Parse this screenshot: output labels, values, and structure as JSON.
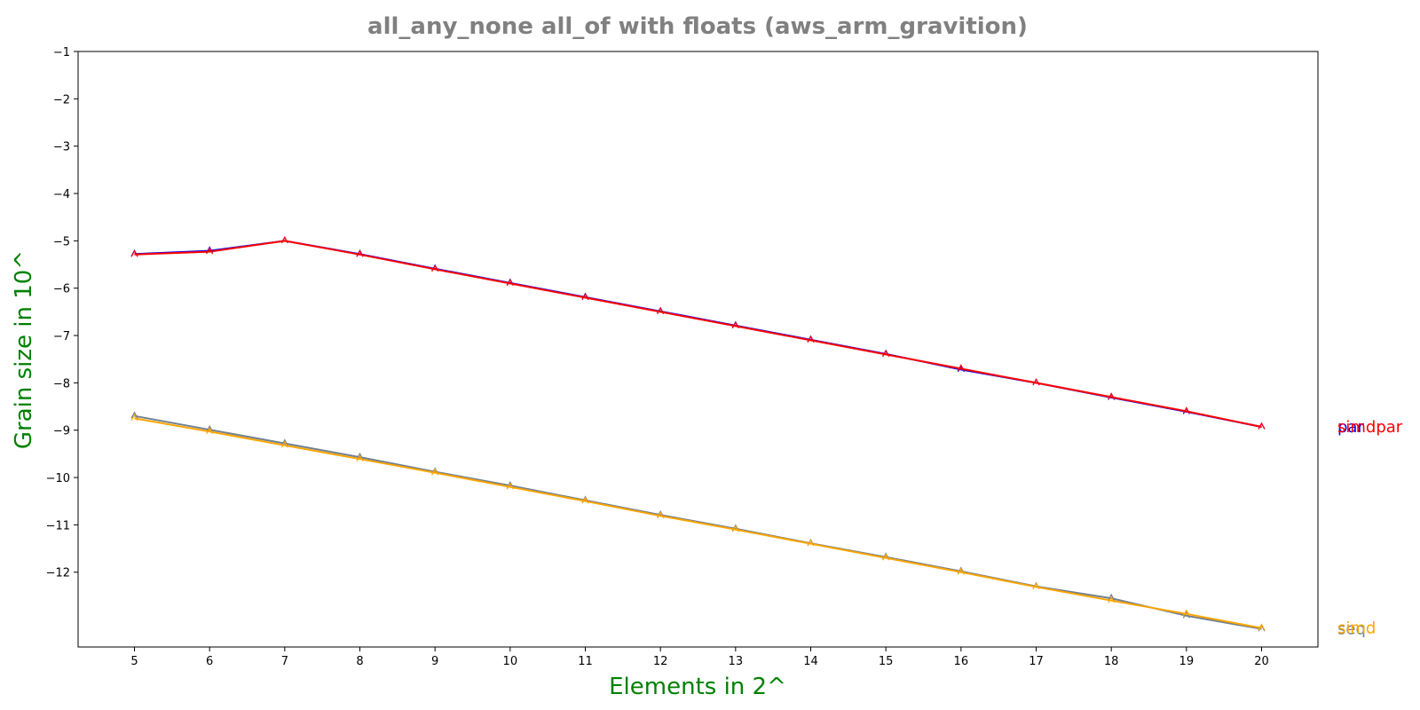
{
  "chart_data": {
    "type": "line",
    "title": "all_any_none all_of with floats  (aws_arm_gravition)",
    "xlabel": "Elements in 2^",
    "ylabel": "Grain size in 10^",
    "x": [
      5,
      6,
      7,
      8,
      9,
      10,
      11,
      12,
      13,
      14,
      15,
      16,
      17,
      18,
      19,
      20
    ],
    "xlim": [
      4.25,
      20.75
    ],
    "ylim": [
      -13.58,
      -1
    ],
    "xticks": [
      "5",
      "6",
      "7",
      "8",
      "9",
      "10",
      "11",
      "12",
      "13",
      "14",
      "15",
      "16",
      "17",
      "18",
      "19",
      "20"
    ],
    "yticks": [
      {
        "value": -1,
        "label": "−1"
      },
      {
        "value": -2,
        "label": "−2"
      },
      {
        "value": -3,
        "label": "−3"
      },
      {
        "value": -4,
        "label": "−4"
      },
      {
        "value": -5,
        "label": "−5"
      },
      {
        "value": -6,
        "label": "−6"
      },
      {
        "value": -7,
        "label": "−7"
      },
      {
        "value": -8,
        "label": "−8"
      },
      {
        "value": -9,
        "label": "−9"
      },
      {
        "value": -10,
        "label": "−10"
      },
      {
        "value": -11,
        "label": "−11"
      },
      {
        "value": -12,
        "label": "−12"
      }
    ],
    "grid": false,
    "legend": "none",
    "series": [
      {
        "name": "par",
        "color": "#0000ff",
        "values": [
          -5.28,
          -5.21,
          -5.0,
          -5.28,
          -5.59,
          -5.89,
          -6.19,
          -6.49,
          -6.79,
          -7.09,
          -7.39,
          -7.72,
          -8.0,
          -8.31,
          -8.61,
          -8.93
        ]
      },
      {
        "name": "simdpar",
        "color": "#ff0000",
        "values": [
          -5.29,
          -5.23,
          -5.0,
          -5.29,
          -5.6,
          -5.9,
          -6.2,
          -6.5,
          -6.8,
          -7.1,
          -7.4,
          -7.7,
          -8.0,
          -8.3,
          -8.6,
          -8.93
        ]
      },
      {
        "name": "seq",
        "color": "#708090",
        "values": [
          -8.7,
          -8.99,
          -9.28,
          -9.57,
          -9.88,
          -10.17,
          -10.48,
          -10.79,
          -11.08,
          -11.39,
          -11.68,
          -11.98,
          -12.3,
          -12.55,
          -12.92,
          -13.2
        ]
      },
      {
        "name": "simd",
        "color": "#ffa500",
        "values": [
          -8.75,
          -9.03,
          -9.32,
          -9.61,
          -9.9,
          -10.2,
          -10.5,
          -10.81,
          -11.1,
          -11.4,
          -11.7,
          -12.0,
          -12.31,
          -12.6,
          -12.88,
          -13.18
        ]
      }
    ]
  }
}
